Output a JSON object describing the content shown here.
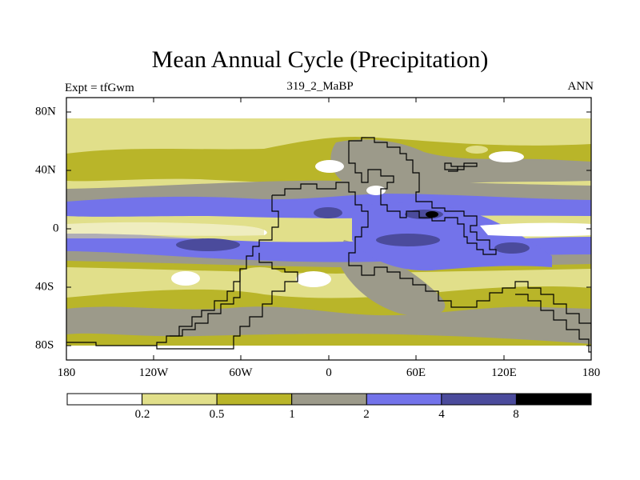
{
  "title": "Mean Annual Cycle (Precipitation)",
  "subtitle": {
    "left": "Expt = tfGwm",
    "center": "319_2_MaBP",
    "right": "ANN"
  },
  "axes": {
    "lon_labels": [
      "180",
      "120W",
      "60W",
      "0",
      "60E",
      "120E",
      "180"
    ],
    "lat_labels": [
      "80N",
      "40N",
      "0",
      "40S",
      "80S"
    ]
  },
  "colorbar": {
    "labels": [
      "0.2",
      "0.5",
      "1",
      "2",
      "4",
      "8"
    ],
    "colors": [
      "#ffffff",
      "#e1df8a",
      "#b9b529",
      "#9c9a8a",
      "#7373ea",
      "#4b4b9c",
      "#000000"
    ]
  },
  "chart_data": {
    "type": "contour-map",
    "variable": "Precipitation",
    "x_range": [
      -180,
      180
    ],
    "y_range": [
      -90,
      90
    ],
    "levels": [
      0.2,
      0.5,
      1,
      2,
      4,
      8
    ]
  }
}
